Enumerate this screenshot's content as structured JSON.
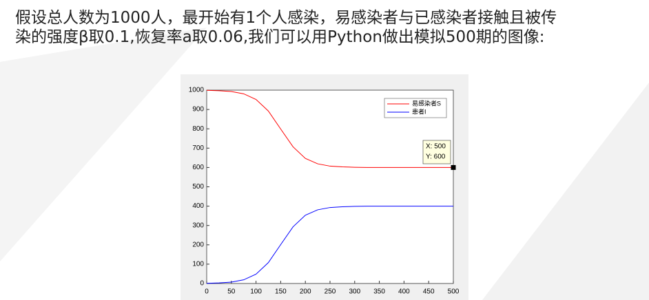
{
  "text_lines": [
    "假设总人数为1000人，最开始有1个人感染，易感染者与已感染者接触且被传",
    "染的强度β取0.1,恢复率a取0.06,我们可以用Python做出模拟500期的图像:"
  ],
  "chart_data": {
    "type": "line",
    "x": [
      0,
      25,
      50,
      75,
      100,
      125,
      150,
      175,
      200,
      225,
      250,
      275,
      300,
      325,
      350,
      375,
      400,
      425,
      450,
      475,
      500
    ],
    "series": [
      {
        "name": "易感染者S",
        "color": "#ff0000",
        "values": [
          999,
          997,
          993,
          981,
          952,
          892,
          799,
          707,
          647,
          619,
          607,
          603,
          601,
          600,
          600,
          600,
          600,
          600,
          600,
          600,
          600
        ]
      },
      {
        "name": "患者I",
        "color": "#0000ff",
        "values": [
          1,
          3,
          7,
          19,
          48,
          108,
          201,
          293,
          353,
          381,
          393,
          397,
          399,
          400,
          400,
          400,
          400,
          400,
          400,
          400,
          400
        ]
      }
    ],
    "xlim": [
      0,
      500
    ],
    "ylim": [
      0,
      1000
    ],
    "xticks": [
      0,
      50,
      100,
      150,
      200,
      250,
      300,
      350,
      400,
      450,
      500
    ],
    "yticks": [
      0,
      100,
      200,
      300,
      400,
      500,
      600,
      700,
      800,
      900,
      1000
    ],
    "legend": "upper right",
    "tooltip": [
      "X: 500",
      "Y: 600"
    ]
  }
}
